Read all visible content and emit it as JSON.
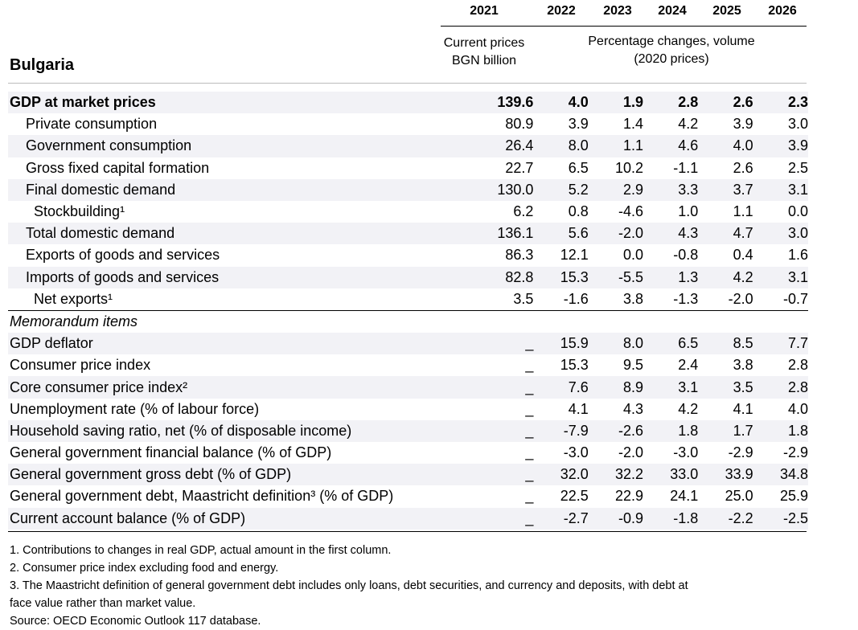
{
  "header": {
    "years": [
      "2021",
      "2022",
      "2023",
      "2024",
      "2025",
      "2026"
    ],
    "col1_sub_line1": "Current prices",
    "col1_sub_line2": "BGN billion",
    "rest_sub_line1": "Percentage changes, volume",
    "rest_sub_line2": "(2020 prices)"
  },
  "country": "Bulgaria",
  "rows": [
    {
      "label": "GDP at market prices",
      "v2021": "139.6",
      "v": [
        "4.0",
        "1.9",
        "2.8",
        "2.6",
        "2.3"
      ]
    },
    {
      "label": "Private consumption",
      "v2021": "80.9",
      "v": [
        "3.9",
        "1.4",
        "4.2",
        "3.9",
        "3.0"
      ]
    },
    {
      "label": "Government consumption",
      "v2021": "26.4",
      "v": [
        "8.0",
        "1.1",
        "4.6",
        "4.0",
        "3.9"
      ]
    },
    {
      "label": "Gross fixed capital formation",
      "v2021": "22.7",
      "v": [
        "6.5",
        "10.2",
        "-1.1",
        "2.6",
        "2.5"
      ]
    },
    {
      "label": "Final domestic demand",
      "v2021": "130.0",
      "v": [
        "5.2",
        "2.9",
        "3.3",
        "3.7",
        "3.1"
      ]
    },
    {
      "label": "Stockbuilding¹",
      "v2021": "6.2",
      "v": [
        "0.8",
        "-4.6",
        "1.0",
        "1.1",
        "0.0"
      ]
    },
    {
      "label": "Total domestic demand",
      "v2021": "136.1",
      "v": [
        "5.6",
        "-2.0",
        "4.3",
        "4.7",
        "3.0"
      ]
    },
    {
      "label": "Exports of goods and services",
      "v2021": "86.3",
      "v": [
        "12.1",
        "0.0",
        "-0.8",
        "0.4",
        "1.6"
      ]
    },
    {
      "label": "Imports of goods and services",
      "v2021": "82.8",
      "v": [
        "15.3",
        "-5.5",
        "1.3",
        "4.2",
        "3.1"
      ]
    },
    {
      "label": "Net exports¹",
      "v2021": "3.5",
      "v": [
        "-1.6",
        "3.8",
        "-1.3",
        "-2.0",
        "-0.7"
      ]
    }
  ],
  "memo_title": "Memorandum items",
  "memo_rows": [
    {
      "label": "GDP deflator",
      "v2021": "_",
      "v": [
        "15.9",
        "8.0",
        "6.5",
        "8.5",
        "7.7"
      ]
    },
    {
      "label": "Consumer price index",
      "v2021": "_",
      "v": [
        "15.3",
        "9.5",
        "2.4",
        "3.8",
        "2.8"
      ]
    },
    {
      "label": "Core consumer price index²",
      "v2021": "_",
      "v": [
        "7.6",
        "8.9",
        "3.1",
        "3.5",
        "2.8"
      ]
    },
    {
      "label": "Unemployment rate (% of labour force)",
      "v2021": "_",
      "v": [
        "4.1",
        "4.3",
        "4.2",
        "4.1",
        "4.0"
      ]
    },
    {
      "label": "Household saving ratio, net (% of disposable income)",
      "v2021": "_",
      "v": [
        "-7.9",
        "-2.6",
        "1.8",
        "1.7",
        "1.8"
      ]
    },
    {
      "label": "General government financial balance (% of GDP)",
      "v2021": "_",
      "v": [
        "-3.0",
        "-2.0",
        "-3.0",
        "-2.9",
        "-2.9"
      ]
    },
    {
      "label": "General government gross debt (% of GDP)",
      "v2021": "_",
      "v": [
        "32.0",
        "32.2",
        "33.0",
        "33.9",
        "34.8"
      ]
    },
    {
      "label": "General government debt, Maastricht definition³ (% of GDP)",
      "v2021": "_",
      "v": [
        "22.5",
        "22.9",
        "24.1",
        "25.0",
        "25.9"
      ]
    },
    {
      "label": "Current account balance (% of GDP)",
      "v2021": "_",
      "v": [
        "-2.7",
        "-0.9",
        "-1.8",
        "-2.2",
        "-2.5"
      ]
    }
  ],
  "notes": [
    "1. Contributions to changes in real GDP, actual amount in the first column.",
    "2. Consumer price index excluding food and energy.",
    "3. The Maastricht definition of general government debt includes only loans, debt securities, and currency and deposits, with debt at",
    "face value rather than market value.",
    "Source: OECD Economic Outlook 117 database."
  ]
}
